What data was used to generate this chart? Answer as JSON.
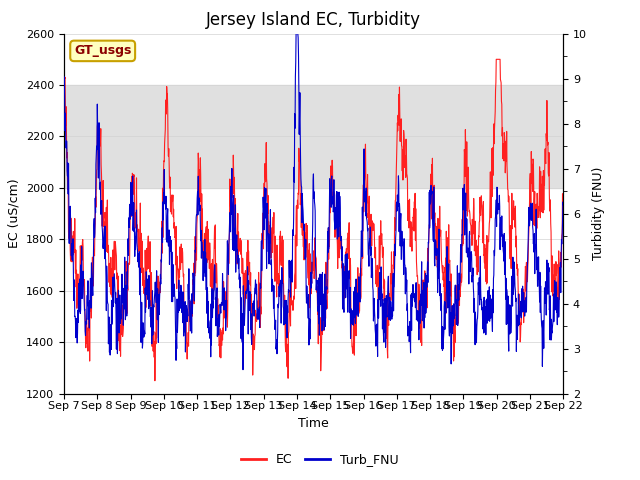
{
  "title": "Jersey Island EC, Turbidity",
  "xlabel": "Time",
  "ylabel_left": "EC (uS/cm)",
  "ylabel_right": "Turbidity (FNU)",
  "ylim_left": [
    1200,
    2600
  ],
  "ylim_right": [
    2.0,
    10.0
  ],
  "yticks_left": [
    1200,
    1400,
    1600,
    1800,
    2000,
    2200,
    2400,
    2600
  ],
  "yticks_right": [
    2.0,
    3.0,
    4.0,
    5.0,
    6.0,
    7.0,
    8.0,
    9.0,
    10.0
  ],
  "xtick_labels": [
    "Sep 7",
    "Sep 8",
    "Sep 9",
    "Sep 10",
    "Sep 11",
    "Sep 12",
    "Sep 13",
    "Sep 14",
    "Sep 15",
    "Sep 16",
    "Sep 17",
    "Sep 18",
    "Sep 19",
    "Sep 20",
    "Sep 21",
    "Sep 22"
  ],
  "ec_color": "#FF2020",
  "turb_color": "#0000CC",
  "shading_color": "#E0E0E0",
  "shading_ec_min": 2000,
  "shading_ec_max": 2400,
  "shading2_ec_min": 1950,
  "shading2_ec_max": 2050,
  "legend_ec": "EC",
  "legend_turb": "Turb_FNU",
  "annotation_text": "GT_usgs",
  "annotation_bg": "#FFFFC0",
  "annotation_border": "#C8A000",
  "title_fontsize": 12,
  "axis_fontsize": 9,
  "tick_fontsize": 8,
  "legend_fontsize": 9,
  "n_days": 15,
  "n_per_day": 96,
  "seed": 42
}
